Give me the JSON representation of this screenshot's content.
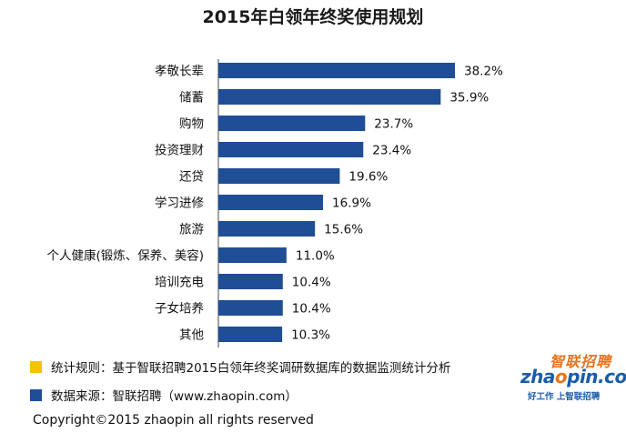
{
  "chart_data": {
    "type": "bar",
    "orientation": "horizontal",
    "title": "2015年白领年终奖使用规划",
    "categories": [
      "孝敬长辈",
      "储蓄",
      "购物",
      "投资理财",
      "还贷",
      "学习进修",
      "旅游",
      "个人健康(锻炼、保养、美容)",
      "培训充电",
      "子女培养",
      "其他"
    ],
    "values": [
      38.2,
      35.9,
      23.7,
      23.4,
      19.6,
      16.9,
      15.6,
      11.0,
      10.4,
      10.4,
      10.3
    ],
    "value_labels": [
      "38.2%",
      "35.9%",
      "23.7%",
      "23.4%",
      "19.6%",
      "16.9%",
      "15.6%",
      "11.0%",
      "10.4%",
      "10.4%",
      "10.3%"
    ],
    "xlim": [
      0,
      45
    ],
    "xlabel": "",
    "ylabel": "",
    "grid": false,
    "bar_color": "#1f4e96"
  },
  "notes": {
    "rule": "统计规则：基于智联招聘2015白领年终奖调研数据库的数据监测统计分析",
    "source": "数据来源：智联招聘（www.zhaopin.com）",
    "rule_color": "#f5c400",
    "source_color": "#1f4e96"
  },
  "logo": {
    "brand_cn": "智联招聘",
    "brand_en_pre": "zha",
    "brand_en_o": "o",
    "brand_en_post": "pin.com",
    "slogan": "好工作 上智联招聘"
  },
  "footer": {
    "copyright": "Copyright©2015 zhaopin all rights reserved"
  }
}
